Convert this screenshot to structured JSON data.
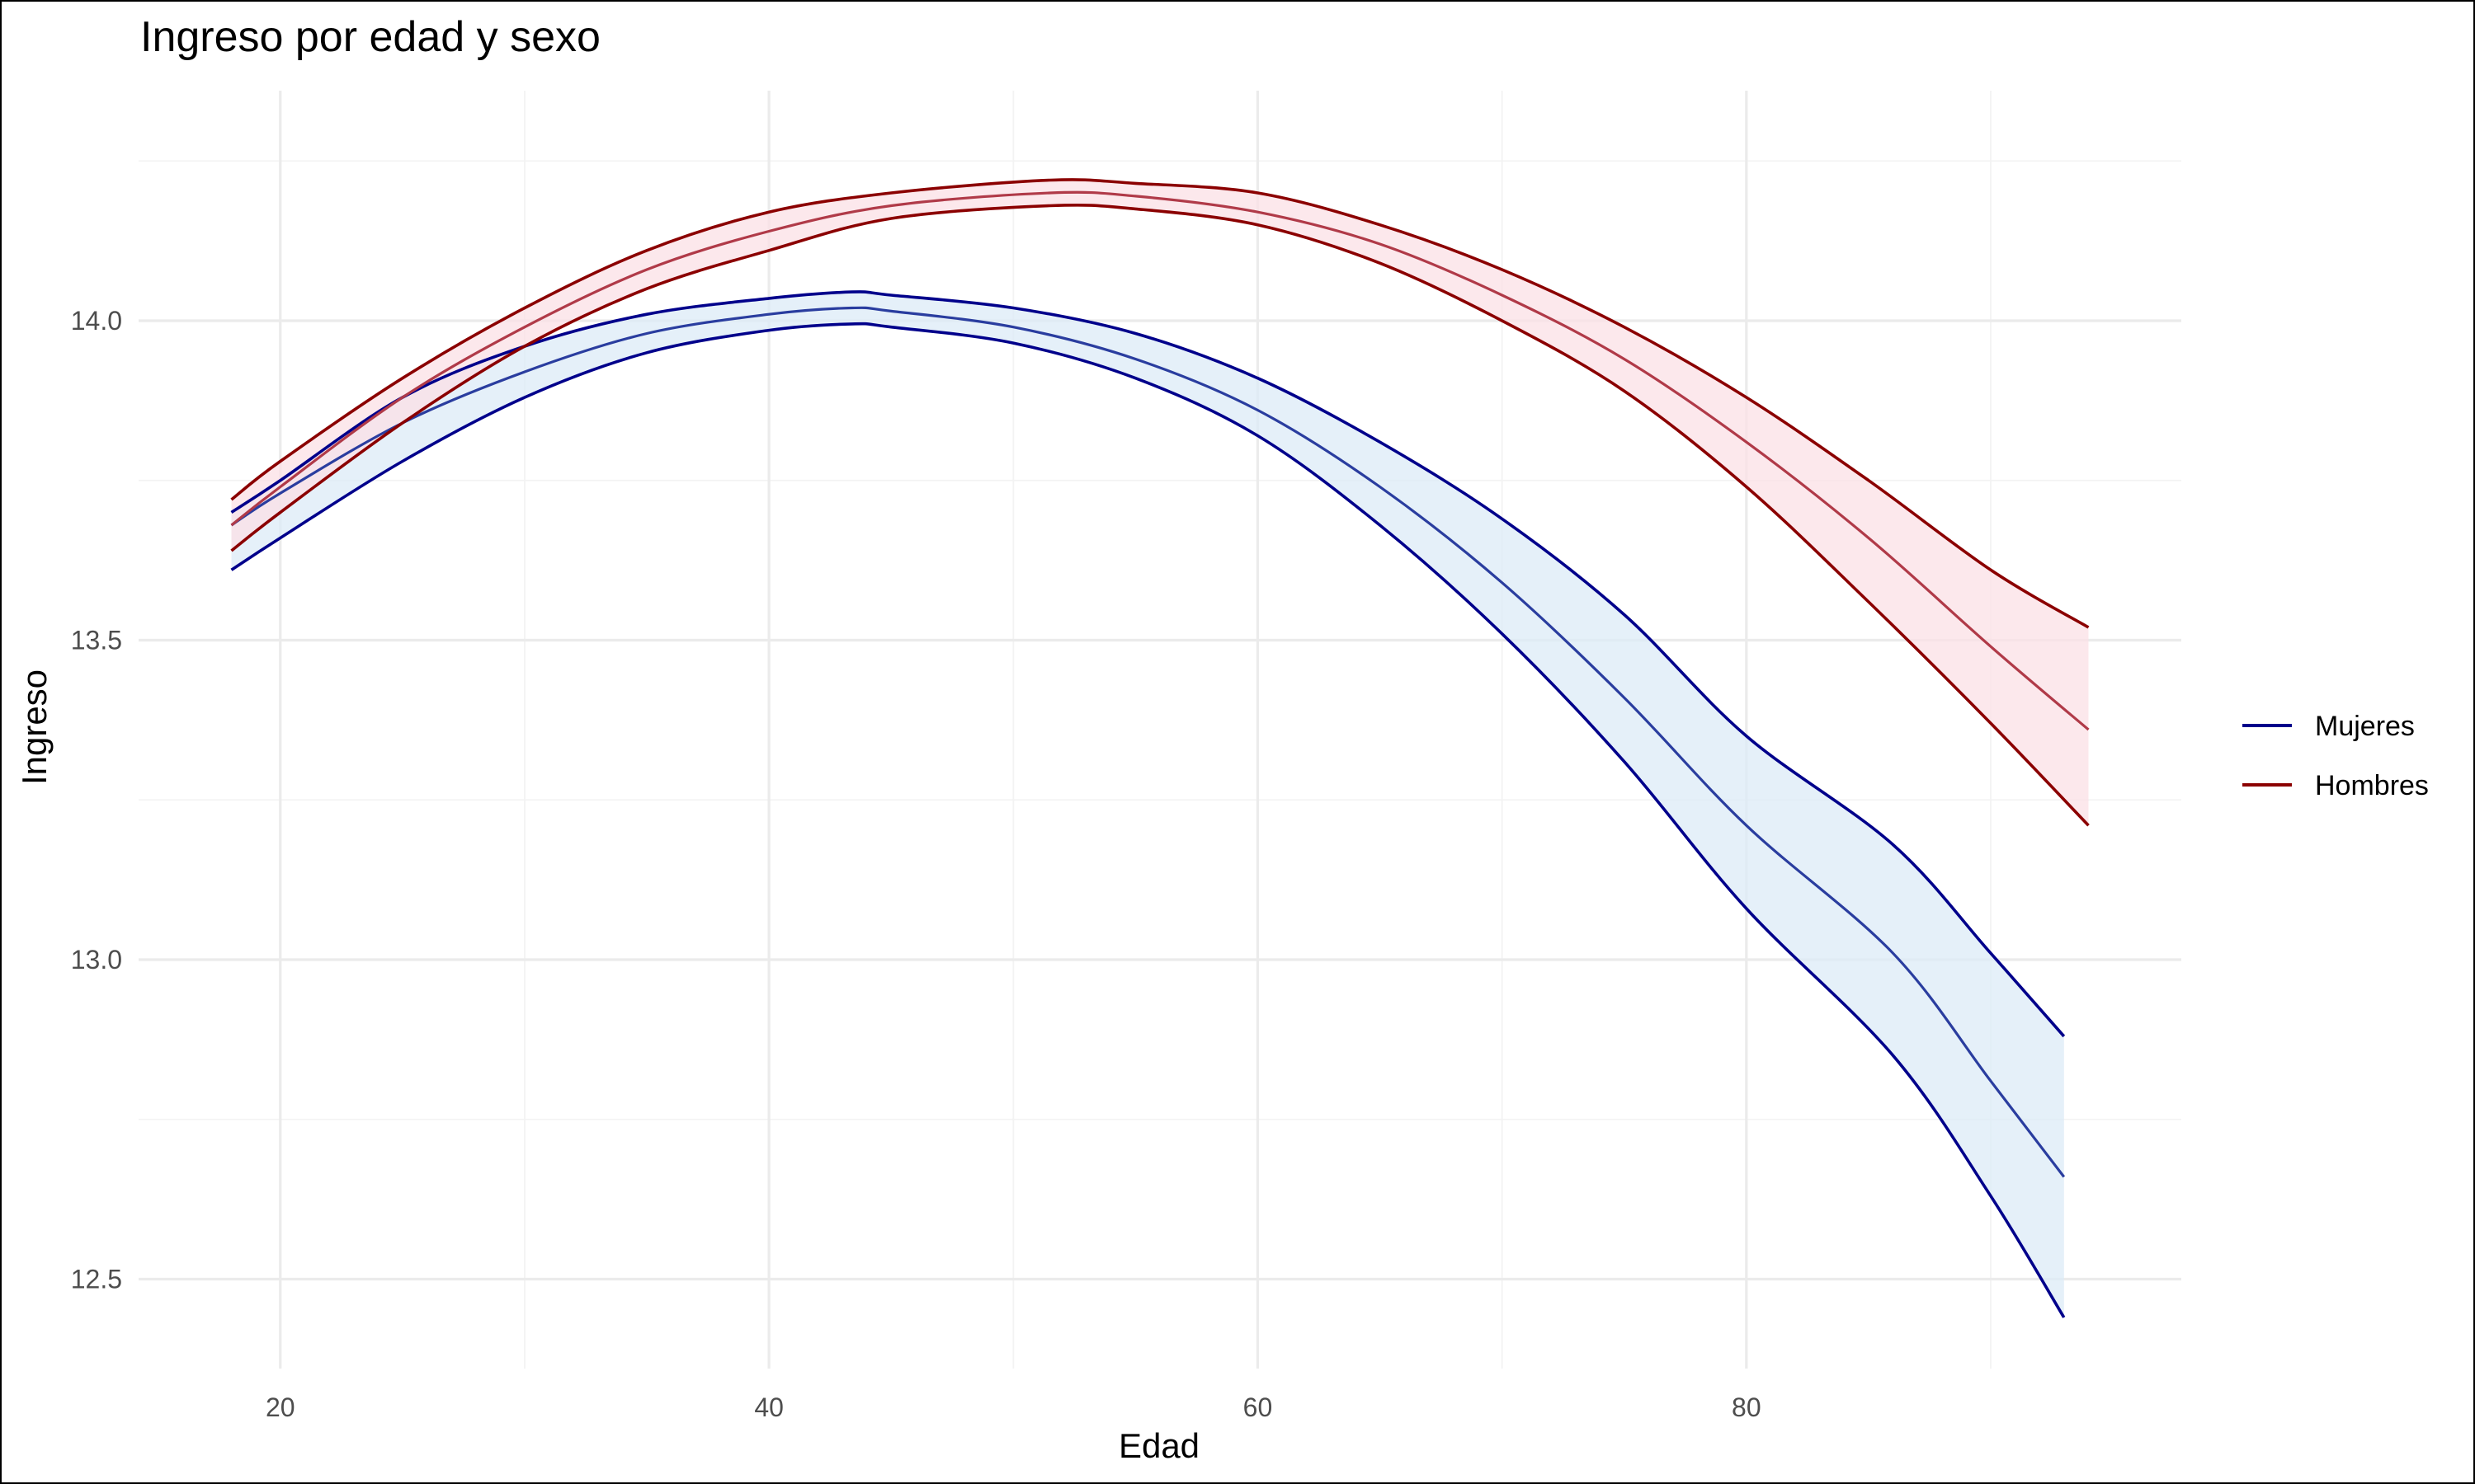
{
  "chart_data": {
    "type": "line",
    "title": "Ingreso por edad y sexo",
    "xlabel": "Edad",
    "ylabel": "Ingreso",
    "xlim": [
      14.2,
      97.8
    ],
    "ylim": [
      12.36,
      14.36
    ],
    "x_ticks": [
      20,
      40,
      60,
      80
    ],
    "y_ticks": [
      12.5,
      13.0,
      13.5,
      14.0
    ],
    "y_tick_labels": [
      "12.5",
      "13.0",
      "13.5",
      "14.0"
    ],
    "grid": true,
    "legend_position": "right",
    "series": [
      {
        "name": "Mujeres",
        "color": "#00008B",
        "fit_color": "#2A3D9F",
        "band_color": "#DCEBF7",
        "x": [
          18,
          20,
          25,
          30,
          35,
          40,
          43.4,
          45,
          50,
          55,
          60,
          65,
          70,
          75,
          80,
          86,
          90,
          93
        ],
        "fit": [
          13.68,
          13.73,
          13.84,
          13.92,
          13.98,
          14.01,
          14.02,
          14.015,
          13.99,
          13.94,
          13.86,
          13.74,
          13.59,
          13.41,
          13.21,
          13.01,
          12.81,
          12.66
        ],
        "lower": [
          13.61,
          13.66,
          13.78,
          13.88,
          13.95,
          13.985,
          13.995,
          13.99,
          13.965,
          13.91,
          13.82,
          13.68,
          13.51,
          13.31,
          13.08,
          12.85,
          12.63,
          12.44
        ],
        "upper": [
          13.7,
          13.75,
          13.88,
          13.96,
          14.01,
          14.035,
          14.045,
          14.04,
          14.02,
          13.98,
          13.91,
          13.81,
          13.69,
          13.54,
          13.35,
          13.18,
          13.01,
          12.88
        ]
      },
      {
        "name": "Hombres",
        "color": "#8B0000",
        "fit_color": "#B03A48",
        "band_color": "#FBE0E6",
        "x": [
          18,
          20,
          25,
          30,
          35,
          40,
          45,
          51.5,
          55,
          60,
          65,
          70,
          75,
          80,
          85,
          90,
          94
        ],
        "fit": [
          13.68,
          13.74,
          13.88,
          13.99,
          14.08,
          14.14,
          14.18,
          14.2,
          14.195,
          14.17,
          14.12,
          14.04,
          13.94,
          13.81,
          13.66,
          13.49,
          13.36
        ],
        "lower": [
          13.64,
          13.7,
          13.84,
          13.96,
          14.05,
          14.11,
          14.16,
          14.18,
          14.175,
          14.15,
          14.09,
          14.0,
          13.89,
          13.74,
          13.56,
          13.37,
          13.21
        ],
        "upper": [
          13.72,
          13.78,
          13.91,
          14.02,
          14.11,
          14.17,
          14.2,
          14.22,
          14.215,
          14.2,
          14.15,
          14.08,
          13.99,
          13.88,
          13.75,
          13.61,
          13.52
        ]
      }
    ]
  }
}
